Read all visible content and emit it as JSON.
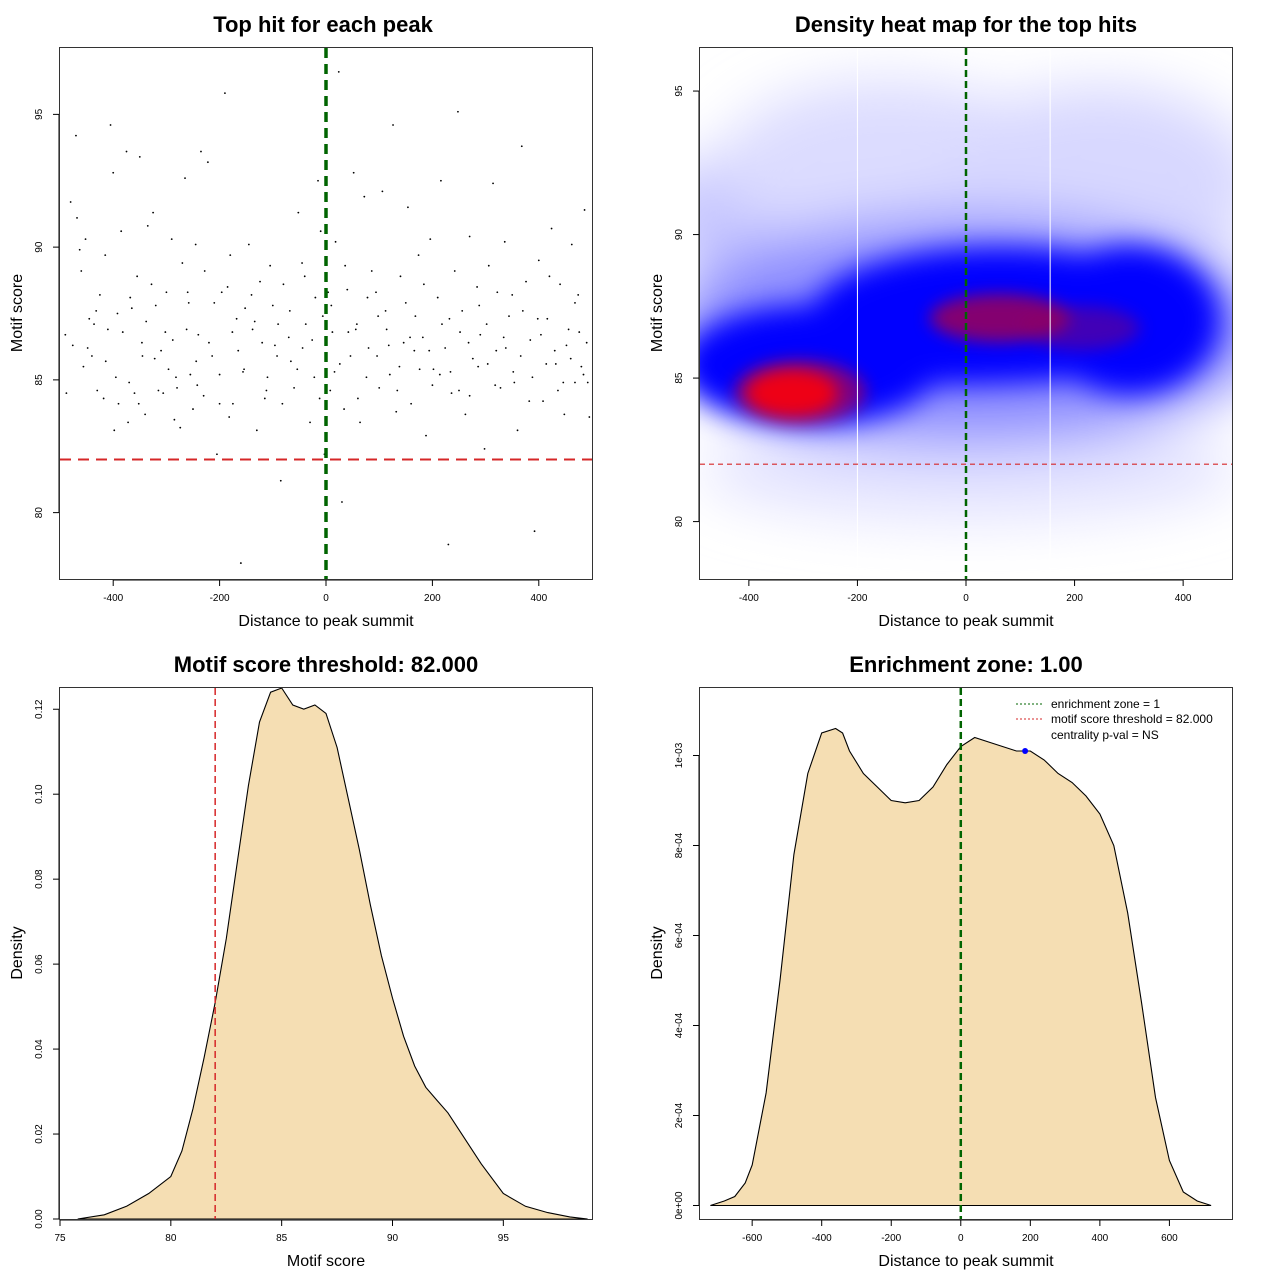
{
  "chart_data": [
    {
      "type": "scatter",
      "title": "Top hit for each peak",
      "xlabel": "Distance to peak summit",
      "ylabel": "Motif score",
      "xlim": [
        -500,
        500
      ],
      "ylim": [
        77.5,
        97.5
      ],
      "xticks": [
        "-400",
        "-200",
        "0",
        "200",
        "400"
      ],
      "yticks": [
        "80",
        "85",
        "90",
        "95"
      ],
      "summit_line_x": 0,
      "summit_line_color": "#006400",
      "threshold_y": 82,
      "threshold_color": "#d62728",
      "points": [
        [
          -480,
          91.7
        ],
        [
          -470,
          94.2
        ],
        [
          -468,
          91.1
        ],
        [
          -460,
          89.1
        ],
        [
          -452,
          90.3
        ],
        [
          -445,
          87.3
        ],
        [
          -440,
          85.9
        ],
        [
          -430,
          84.6
        ],
        [
          -425,
          88.2
        ],
        [
          -415,
          89.7
        ],
        [
          -410,
          86.9
        ],
        [
          -405,
          94.6
        ],
        [
          -400,
          92.8
        ],
        [
          -395,
          85.1
        ],
        [
          -390,
          84.1
        ],
        [
          -385,
          90.6
        ],
        [
          -375,
          93.6
        ],
        [
          -372,
          83.4
        ],
        [
          -365,
          87.7
        ],
        [
          -360,
          84.5
        ],
        [
          -355,
          88.9
        ],
        [
          -350,
          93.4
        ],
        [
          -345,
          85.9
        ],
        [
          -340,
          83.7
        ],
        [
          -335,
          90.8
        ],
        [
          -325,
          91.3
        ],
        [
          -320,
          87.8
        ],
        [
          -315,
          84.6
        ],
        [
          -310,
          86.1
        ],
        [
          -300,
          88.3
        ],
        [
          -296,
          85.4
        ],
        [
          -290,
          90.3
        ],
        [
          -285,
          83.5
        ],
        [
          -280,
          84.7
        ],
        [
          -270,
          89.4
        ],
        [
          -265,
          92.6
        ],
        [
          -260,
          88.3
        ],
        [
          -255,
          85.2
        ],
        [
          -250,
          83.9
        ],
        [
          -245,
          90.1
        ],
        [
          -240,
          86.7
        ],
        [
          -235,
          93.6
        ],
        [
          -230,
          84.4
        ],
        [
          -222,
          93.2
        ],
        [
          -210,
          87.9
        ],
        [
          -205,
          82.2
        ],
        [
          -200,
          85.2
        ],
        [
          -190,
          95.8
        ],
        [
          -185,
          88.5
        ],
        [
          -180,
          89.7
        ],
        [
          -175,
          84.1
        ],
        [
          -165,
          86.1
        ],
        [
          -160,
          78.1
        ],
        [
          -152,
          87.7
        ],
        [
          -145,
          90.1
        ],
        [
          -140,
          88.2
        ],
        [
          -130,
          83.1
        ],
        [
          -120,
          86.4
        ],
        [
          -115,
          84.3
        ],
        [
          -105,
          89.3
        ],
        [
          -100,
          87.8
        ],
        [
          -92,
          85.9
        ],
        [
          -85,
          81.2
        ],
        [
          -80,
          88.6
        ],
        [
          -70,
          86.6
        ],
        [
          -60,
          84.7
        ],
        [
          -52,
          91.3
        ],
        [
          -45,
          89.4
        ],
        [
          -38,
          87.1
        ],
        [
          -30,
          83.4
        ],
        [
          -22,
          85.1
        ],
        [
          -15,
          92.5
        ],
        [
          -10,
          90.6
        ],
        [
          -6,
          87.4
        ],
        [
          -3,
          82.2
        ],
        [
          4,
          88.3
        ],
        [
          8,
          84.6
        ],
        [
          12,
          86.8
        ],
        [
          18,
          90.2
        ],
        [
          24,
          96.6
        ],
        [
          30,
          80.4
        ],
        [
          36,
          89.3
        ],
        [
          40,
          88.4
        ],
        [
          46,
          85.9
        ],
        [
          52,
          92.8
        ],
        [
          58,
          87.1
        ],
        [
          64,
          83.4
        ],
        [
          72,
          91.9
        ],
        [
          80,
          86.2
        ],
        [
          86,
          89.1
        ],
        [
          94,
          88.3
        ],
        [
          100,
          84.7
        ],
        [
          106,
          92.1
        ],
        [
          112,
          87.6
        ],
        [
          120,
          85.2
        ],
        [
          126,
          94.6
        ],
        [
          132,
          83.8
        ],
        [
          140,
          88.9
        ],
        [
          146,
          86.4
        ],
        [
          154,
          91.5
        ],
        [
          160,
          84.1
        ],
        [
          168,
          87.4
        ],
        [
          174,
          89.7
        ],
        [
          182,
          86.6
        ],
        [
          188,
          82.9
        ],
        [
          196,
          90.3
        ],
        [
          202,
          85.4
        ],
        [
          210,
          88.1
        ],
        [
          216,
          92.5
        ],
        [
          224,
          86.2
        ],
        [
          230,
          78.8
        ],
        [
          236,
          84.5
        ],
        [
          242,
          89.1
        ],
        [
          248,
          95.1
        ],
        [
          256,
          87.6
        ],
        [
          262,
          83.7
        ],
        [
          270,
          90.4
        ],
        [
          276,
          85.8
        ],
        [
          284,
          88.5
        ],
        [
          290,
          86.7
        ],
        [
          298,
          82.4
        ],
        [
          306,
          89.3
        ],
        [
          314,
          92.4
        ],
        [
          320,
          86.1
        ],
        [
          328,
          84.7
        ],
        [
          336,
          90.2
        ],
        [
          344,
          87.4
        ],
        [
          352,
          85.3
        ],
        [
          360,
          83.1
        ],
        [
          368,
          93.8
        ],
        [
          376,
          88.7
        ],
        [
          384,
          86.5
        ],
        [
          392,
          79.3
        ],
        [
          400,
          89.5
        ],
        [
          408,
          84.2
        ],
        [
          416,
          87.3
        ],
        [
          424,
          90.7
        ],
        [
          432,
          85.6
        ],
        [
          440,
          88.6
        ],
        [
          448,
          83.7
        ],
        [
          456,
          86.9
        ],
        [
          462,
          90.1
        ],
        [
          468,
          84.9
        ],
        [
          474,
          88.2
        ],
        [
          480,
          85.5
        ],
        [
          486,
          91.4
        ],
        [
          490,
          86.4
        ],
        [
          495,
          83.6
        ],
        [
          -488,
          84.5
        ],
        [
          -463,
          89.9
        ],
        [
          -448,
          86.2
        ],
        [
          -432,
          87.6
        ],
        [
          -418,
          84.3
        ],
        [
          -398,
          83.1
        ],
        [
          -382,
          86.8
        ],
        [
          -368,
          88.1
        ],
        [
          -352,
          84.1
        ],
        [
          -338,
          87.2
        ],
        [
          -322,
          85.8
        ],
        [
          -306,
          84.5
        ],
        [
          -288,
          86.5
        ],
        [
          -274,
          83.2
        ],
        [
          -258,
          87.9
        ],
        [
          -244,
          85.7
        ],
        [
          -228,
          89.1
        ],
        [
          -214,
          85.9
        ],
        [
          -196,
          88.3
        ],
        [
          -182,
          83.6
        ],
        [
          -168,
          87.3
        ],
        [
          -154,
          85.4
        ],
        [
          -138,
          86.9
        ],
        [
          -124,
          88.7
        ],
        [
          -110,
          85.1
        ],
        [
          -96,
          86.3
        ],
        [
          -82,
          84.1
        ],
        [
          -68,
          87.6
        ],
        [
          -54,
          85.4
        ],
        [
          -40,
          88.9
        ],
        [
          -26,
          86.5
        ],
        [
          -12,
          84.3
        ],
        [
          10,
          87.8
        ],
        [
          26,
          85.6
        ],
        [
          42,
          86.8
        ],
        [
          60,
          84.3
        ],
        [
          78,
          88.1
        ],
        [
          96,
          85.9
        ],
        [
          114,
          86.9
        ],
        [
          134,
          84.6
        ],
        [
          150,
          87.9
        ],
        [
          166,
          86.1
        ],
        [
          184,
          88.6
        ],
        [
          200,
          84.8
        ],
        [
          218,
          87.1
        ],
        [
          234,
          85.3
        ],
        [
          252,
          86.8
        ],
        [
          270,
          84.4
        ],
        [
          288,
          87.8
        ],
        [
          304,
          85.6
        ],
        [
          322,
          88.3
        ],
        [
          338,
          86.2
        ],
        [
          354,
          84.9
        ],
        [
          370,
          87.6
        ],
        [
          388,
          85.1
        ],
        [
          404,
          86.7
        ],
        [
          420,
          88.9
        ],
        [
          436,
          84.6
        ],
        [
          452,
          86.3
        ],
        [
          468,
          87.9
        ],
        [
          484,
          85.2
        ],
        [
          -476,
          86.3
        ],
        [
          -456,
          85.5
        ],
        [
          -436,
          87.1
        ],
        [
          -414,
          85.7
        ],
        [
          -392,
          87.5
        ],
        [
          -370,
          84.9
        ],
        [
          -346,
          86.4
        ],
        [
          -328,
          88.6
        ],
        [
          -302,
          86.8
        ],
        [
          -282,
          85.1
        ],
        [
          -262,
          86.9
        ],
        [
          -242,
          84.8
        ],
        [
          -220,
          86.4
        ],
        [
          -200,
          84.1
        ],
        [
          -176,
          86.8
        ],
        [
          -156,
          85.3
        ],
        [
          -134,
          87.2
        ],
        [
          -112,
          84.6
        ],
        [
          -90,
          87.1
        ],
        [
          -66,
          85.7
        ],
        [
          -44,
          86.2
        ],
        [
          -20,
          88.1
        ],
        [
          16,
          85.3
        ],
        [
          34,
          83.9
        ],
        [
          56,
          86.9
        ],
        [
          76,
          85.1
        ],
        [
          98,
          87.4
        ],
        [
          118,
          86.3
        ],
        [
          138,
          85.5
        ],
        [
          158,
          86.6
        ],
        [
          176,
          85.4
        ],
        [
          194,
          86.1
        ],
        [
          214,
          85.2
        ],
        [
          232,
          87.3
        ],
        [
          250,
          84.6
        ],
        [
          268,
          86.4
        ],
        [
          286,
          85.5
        ],
        [
          302,
          87.1
        ],
        [
          318,
          84.8
        ],
        [
          334,
          86.6
        ],
        [
          350,
          88.2
        ],
        [
          366,
          85.9
        ],
        [
          382,
          84.2
        ],
        [
          398,
          87.3
        ],
        [
          414,
          85.6
        ],
        [
          430,
          86.1
        ],
        [
          446,
          84.9
        ],
        [
          460,
          85.8
        ],
        [
          476,
          86.8
        ],
        [
          492,
          84.9
        ],
        [
          -490,
          86.7
        ]
      ]
    },
    {
      "type": "heatmap",
      "title": "Density heat map for the top hits",
      "xlabel": "Distance to peak summit",
      "ylabel": "Motif score",
      "xlim": [
        -490,
        490
      ],
      "ylim": [
        78,
        96.5
      ],
      "xticks": [
        "-400",
        "-200",
        "0",
        "200",
        "400"
      ],
      "yticks": [
        "80",
        "85",
        "90",
        "95"
      ],
      "summit_line_x": 0,
      "threshold_y": 82,
      "vertical_white_lines_x": [
        -200,
        155
      ],
      "color_scale": [
        "#ffffff",
        "#0000ff",
        "#ff0000"
      ],
      "density_peaks": [
        {
          "x": -320,
          "y": 84.5,
          "level": "high"
        },
        {
          "x": 60,
          "y": 87.2,
          "level": "medium"
        },
        {
          "x": 250,
          "y": 86.8,
          "level": "medium"
        }
      ]
    },
    {
      "type": "area",
      "title": "Motif score threshold: 82.000",
      "xlabel": "Motif score",
      "ylabel": "Density",
      "xlim": [
        75,
        99
      ],
      "ylim": [
        0,
        0.125
      ],
      "xticks": [
        "75",
        "80",
        "85",
        "90",
        "95"
      ],
      "yticks": [
        "0.00",
        "0.02",
        "0.04",
        "0.06",
        "0.08",
        "0.10",
        "0.12"
      ],
      "threshold_x": 82,
      "threshold_color": "#d62728",
      "fill_color": "#f5deb3",
      "x": [
        75.8,
        77,
        78,
        79,
        80,
        80.5,
        81,
        81.5,
        82,
        82.5,
        83,
        83.5,
        84,
        84.5,
        85,
        85.5,
        86,
        86.5,
        87,
        87.5,
        88,
        88.5,
        89,
        89.5,
        90,
        90.5,
        91,
        91.5,
        92,
        92.5,
        93,
        93.5,
        94,
        95,
        96,
        97,
        98,
        98.8
      ],
      "values": [
        0.0,
        0.001,
        0.003,
        0.006,
        0.01,
        0.016,
        0.026,
        0.038,
        0.051,
        0.066,
        0.084,
        0.102,
        0.117,
        0.124,
        0.125,
        0.121,
        0.12,
        0.121,
        0.119,
        0.111,
        0.099,
        0.087,
        0.074,
        0.062,
        0.052,
        0.043,
        0.036,
        0.031,
        0.028,
        0.025,
        0.021,
        0.017,
        0.013,
        0.006,
        0.003,
        0.0015,
        0.0005,
        0.0
      ]
    },
    {
      "type": "area",
      "title": "Enrichment zone: 1.00",
      "xlabel": "Distance to peak summit",
      "ylabel": "Density",
      "xlim": [
        -750,
        780
      ],
      "ylim": [
        -3e-05,
        0.00115
      ],
      "xticks": [
        "-600",
        "-400",
        "-200",
        "0",
        "200",
        "400",
        "600"
      ],
      "ytick_values": [
        0,
        0.0002,
        0.0004,
        0.0006,
        0.0008,
        0.001
      ],
      "yticks": [
        "0e+00",
        "2e-04",
        "4e-04",
        "6e-04",
        "8e-04",
        "1e-03"
      ],
      "summit_line_x": 0,
      "fill_color": "#f5deb3",
      "marker": {
        "x": 185,
        "y": 0.00101,
        "color": "#0000ff"
      },
      "legend": [
        {
          "label": "enrichment zone = 1",
          "color": "#006400"
        },
        {
          "label": "motif score threshold = 82.000",
          "color": "#d62728"
        },
        {
          "label": "centrality p-val = NS",
          "color": ""
        }
      ],
      "x": [
        -720,
        -680,
        -650,
        -620,
        -600,
        -560,
        -520,
        -480,
        -440,
        -400,
        -360,
        -340,
        -320,
        -280,
        -240,
        -200,
        -160,
        -120,
        -80,
        -40,
        0,
        40,
        80,
        120,
        160,
        200,
        240,
        280,
        320,
        360,
        400,
        440,
        480,
        520,
        560,
        600,
        640,
        680,
        720
      ],
      "values": [
        0.0,
        1e-05,
        2e-05,
        5e-05,
        9e-05,
        0.00025,
        0.0005,
        0.00078,
        0.00096,
        0.00105,
        0.00106,
        0.00105,
        0.00101,
        0.00096,
        0.00093,
        0.0009,
        0.000895,
        0.0009,
        0.00093,
        0.00098,
        0.00102,
        0.00104,
        0.00103,
        0.00102,
        0.00101,
        0.00101,
        0.00099,
        0.00096,
        0.00094,
        0.00091,
        0.00087,
        0.0008,
        0.00065,
        0.00045,
        0.00024,
        0.0001,
        3e-05,
        1e-05,
        0.0
      ]
    }
  ]
}
